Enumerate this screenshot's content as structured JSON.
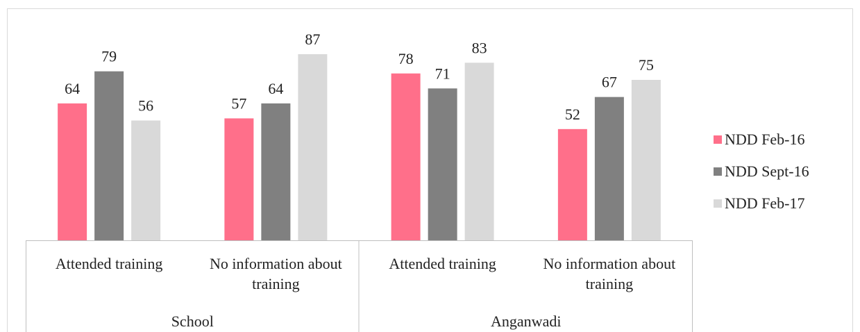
{
  "chart_data": {
    "type": "bar",
    "categories": [
      "Attended training",
      "No information about training",
      "Attended training",
      "No information about training"
    ],
    "groups": [
      {
        "name": "School",
        "span": 2
      },
      {
        "name": "Anganwadi",
        "span": 2
      }
    ],
    "series": [
      {
        "name": "NDD Feb-16",
        "color": "#ff6f8a",
        "values": [
          64,
          57,
          78,
          52
        ]
      },
      {
        "name": "NDD Sept-16",
        "color": "#808080",
        "values": [
          79,
          64,
          71,
          67
        ]
      },
      {
        "name": "NDD Feb-17",
        "color": "#d9d9d9",
        "values": [
          56,
          87,
          83,
          75
        ]
      }
    ],
    "ylim": [
      0,
      100
    ],
    "legend": "right"
  }
}
